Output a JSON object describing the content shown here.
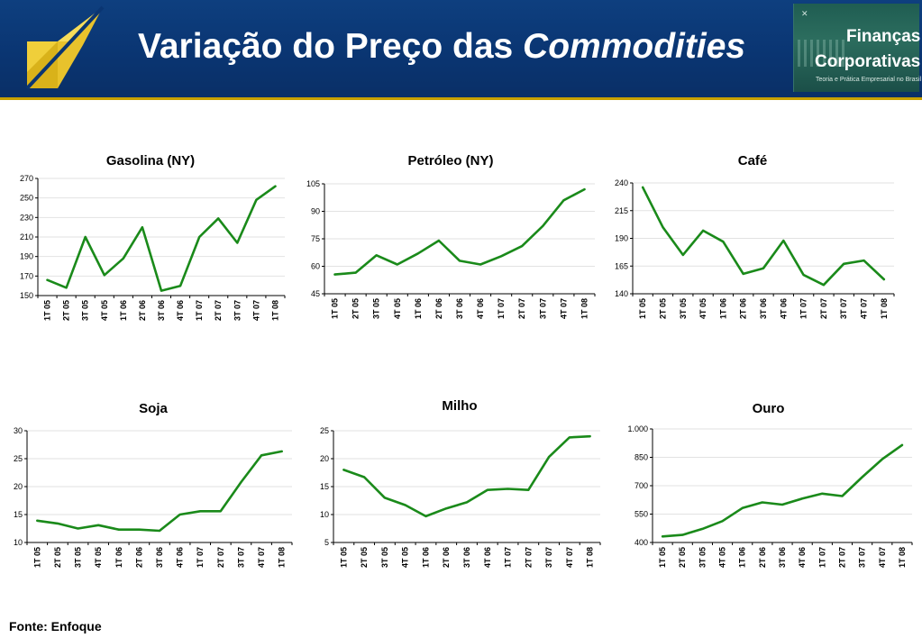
{
  "header": {
    "title_prefix": "Variação do Preço das ",
    "title_italic": "Commodities",
    "logo_right": {
      "line1": "Finanças",
      "line2": "Corporativas",
      "tagline": "Teoria e Prática Empresarial no Brasil"
    }
  },
  "footer": {
    "source": "Fonte: Enfoque"
  },
  "colors": {
    "series": "#1a8a1a",
    "header_bg": "#0a3572",
    "accent": "#c9a100"
  },
  "chart_data": [
    {
      "type": "line",
      "title": "Gasolina (NY)",
      "categories": [
        "1T 05",
        "2T 05",
        "3T 05",
        "4T 05",
        "1T 06",
        "2T 06",
        "3T 06",
        "4T 06",
        "1T 07",
        "2T 07",
        "3T 07",
        "4T 07",
        "1T 08"
      ],
      "values": [
        166,
        158,
        210,
        171,
        188,
        220,
        155,
        160,
        210,
        229,
        204,
        248,
        262
      ],
      "yticks": [
        "150",
        "170",
        "190",
        "210",
        "230",
        "250",
        "270"
      ],
      "ylim": [
        150,
        270
      ],
      "grid": true
    },
    {
      "type": "line",
      "title": "Petróleo (NY)",
      "categories": [
        "1T 05",
        "2T 05",
        "3T 05",
        "4T 05",
        "1T 06",
        "2T 06",
        "3T 06",
        "4T 06",
        "1T 07",
        "2T 07",
        "3T 07",
        "4T 07",
        "1T 08"
      ],
      "values": [
        55.5,
        56.5,
        66,
        61,
        67,
        74,
        63,
        61,
        65.5,
        71,
        82,
        96,
        102
      ],
      "yticks": [
        "45",
        "60",
        "75",
        "90",
        "105"
      ],
      "ylim": [
        45,
        105
      ],
      "grid": true
    },
    {
      "type": "line",
      "title": "Café",
      "categories": [
        "1T 05",
        "2T 05",
        "3T 05",
        "4T 05",
        "1T 06",
        "2T 06",
        "3T 06",
        "4T 06",
        "1T 07",
        "2T 07",
        "3T 07",
        "4T 07",
        "1T 08"
      ],
      "values": [
        236,
        200,
        175,
        197,
        187,
        158,
        163,
        188,
        157,
        148,
        167,
        170,
        153
      ],
      "yticks": [
        "140",
        "165",
        "190",
        "215",
        "240"
      ],
      "ylim": [
        140,
        240
      ],
      "grid": true
    },
    {
      "type": "line",
      "title": "Soja",
      "categories": [
        "1T 05",
        "2T 05",
        "3T 05",
        "4T 05",
        "1T 06",
        "2T 06",
        "3T 06",
        "4T 06",
        "1T 07",
        "2T 07",
        "3T 07",
        "4T 07",
        "1T 08"
      ],
      "values": [
        13.9,
        13.4,
        12.5,
        13.1,
        12.3,
        12.3,
        12.1,
        15.0,
        15.6,
        15.6,
        20.8,
        25.6,
        26.3
      ],
      "yticks": [
        "10",
        "15",
        "20",
        "25",
        "30"
      ],
      "ylim": [
        10,
        30
      ],
      "grid": true
    },
    {
      "type": "line",
      "title": "Milho",
      "categories": [
        "1T 05",
        "2T 05",
        "3T 05",
        "4T 05",
        "1T 06",
        "2T 06",
        "3T 06",
        "4T 06",
        "1T 07",
        "2T 07",
        "3T 07",
        "4T 07",
        "1T 08"
      ],
      "values": [
        18.0,
        16.7,
        13.0,
        11.7,
        9.7,
        11.1,
        12.2,
        14.4,
        14.6,
        14.4,
        20.3,
        23.8,
        24.0
      ],
      "yticks": [
        "5",
        "10",
        "15",
        "20",
        "25"
      ],
      "ylim": [
        5,
        25
      ],
      "grid": true
    },
    {
      "type": "line",
      "title": "Ouro",
      "categories": [
        "1T 05",
        "2T 05",
        "3T 05",
        "4T 05",
        "1T 06",
        "2T 06",
        "3T 06",
        "4T 06",
        "1T 07",
        "2T 07",
        "3T 07",
        "4T 07",
        "1T 08"
      ],
      "values": [
        432,
        440,
        472,
        513,
        582,
        612,
        600,
        632,
        658,
        645,
        745,
        840,
        915
      ],
      "yticks": [
        "400",
        "550",
        "700",
        "850",
        "1.000"
      ],
      "ylim": [
        400,
        1000
      ],
      "grid": true
    }
  ]
}
